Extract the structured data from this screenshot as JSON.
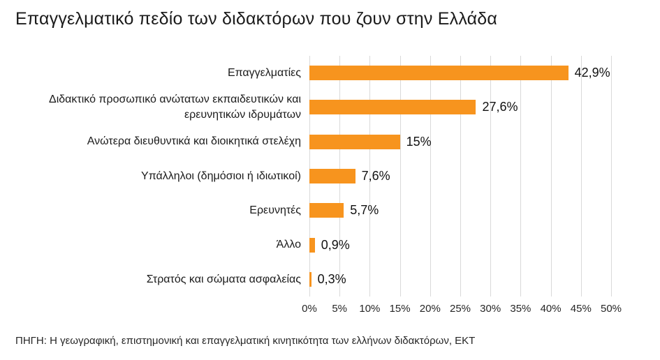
{
  "title": "Επαγγελματικό πεδίο των διδακτόρων που ζουν στην Ελλάδα",
  "source": "ΠΗΓΗ: Η γεωγραφική, επιστημονική και επαγγελματική κινητικότητα των ελλήνων διδακτόρων, ΕΚΤ",
  "colors": {
    "bar": "#F7941E",
    "grid": "#D9D9D9",
    "title_text": "#1B1B1B",
    "label_text": "#1B1B1B",
    "value_text": "#111111",
    "axis_text": "#262626",
    "background": "#FFFFFF"
  },
  "chart_data": {
    "type": "bar",
    "orientation": "horizontal",
    "title": "Επαγγελματικό πεδίο των διδακτόρων που ζουν στην Ελλάδα",
    "categories": [
      "Επαγγελματίες",
      "Διδακτικό προσωπικό ανώτατων εκπαιδευτικών και ερευνητικών ιδρυμάτων",
      "Ανώτερα διευθυντικά και διοικητικά στελέχη",
      "Υπάλληλοι (δημόσιοι ή ιδιωτικοί)",
      "Ερευνητές",
      "Άλλο",
      "Στρατός και σώματα ασφαλείας"
    ],
    "values": [
      42.9,
      27.6,
      15,
      7.6,
      5.7,
      0.9,
      0.3
    ],
    "value_labels": [
      "42,9%",
      "27,6%",
      "15%",
      "7,6%",
      "5,7%",
      "0,9%",
      "0,3%"
    ],
    "xlabel": "",
    "ylabel": "",
    "xlim": [
      0,
      50
    ],
    "x_ticks": [
      "0%",
      "5%",
      "10%",
      "15%",
      "20%",
      "25%",
      "30%",
      "35%",
      "40%",
      "45%",
      "50%"
    ],
    "grid": true,
    "legend": false
  }
}
